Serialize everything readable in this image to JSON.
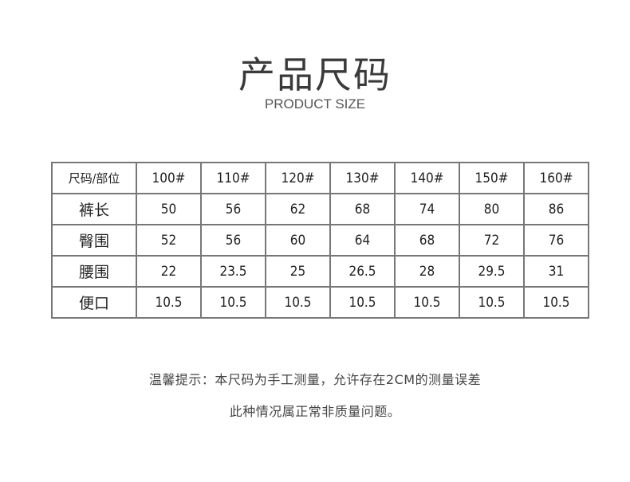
{
  "title": "产品尺码",
  "subtitle": "PRODUCT SIZE",
  "table": {
    "corner": "尺码/部位",
    "sizes": [
      "100#",
      "110#",
      "120#",
      "130#",
      "140#",
      "150#",
      "160#"
    ],
    "rows": [
      {
        "label": "裤长",
        "values": [
          "50",
          "56",
          "62",
          "68",
          "74",
          "80",
          "86"
        ]
      },
      {
        "label": "臀围",
        "values": [
          "52",
          "56",
          "60",
          "64",
          "68",
          "72",
          "76"
        ]
      },
      {
        "label": "腰围",
        "values": [
          "22",
          "23.5",
          "25",
          "26.5",
          "28",
          "29.5",
          "31"
        ]
      },
      {
        "label": "便口",
        "values": [
          "10.5",
          "10.5",
          "10.5",
          "10.5",
          "10.5",
          "10.5",
          "10.5"
        ]
      }
    ]
  },
  "notes": {
    "line1": "温馨提示：本尺码为手工测量，允许存在2CM的测量误差",
    "line2": "此种情况属正常非质量问题。"
  }
}
